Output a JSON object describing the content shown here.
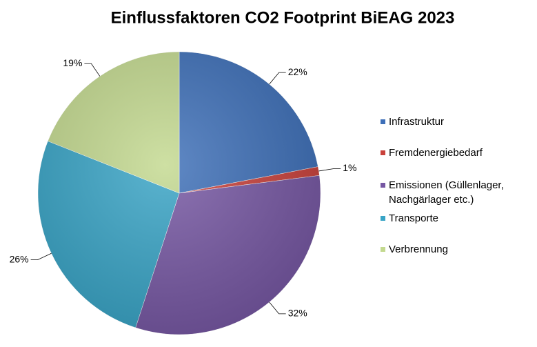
{
  "chart_data": {
    "type": "pie",
    "title": "Einflussfaktoren CO2 Footprint BiEAG 2023",
    "categories": [
      "Infrastruktur",
      "Fremdenergiebedarf",
      "Emissionen (Güllenlager, Nachgärlager etc.)",
      "Transporte",
      "Verbrennung"
    ],
    "values": [
      22,
      1,
      32,
      26,
      19
    ],
    "value_labels": [
      "22%",
      "1%",
      "32%",
      "26%",
      "19%"
    ],
    "colors": [
      "#3d6fb8",
      "#c9413b",
      "#7657a3",
      "#38a4c6",
      "#c3d98f"
    ],
    "legend": "right"
  }
}
